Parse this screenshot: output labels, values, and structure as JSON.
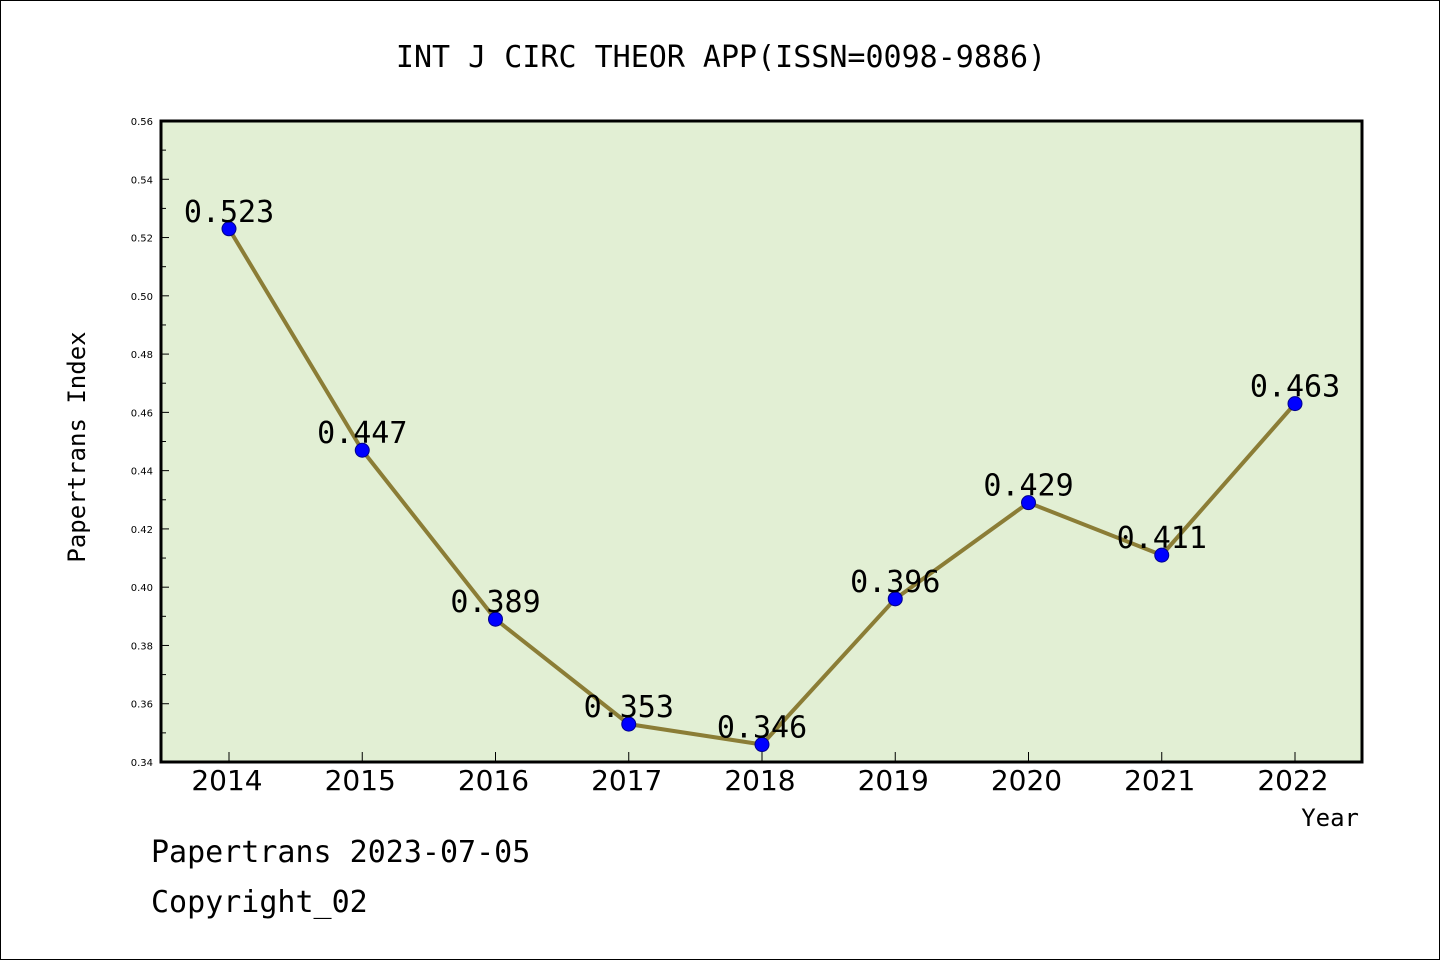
{
  "chart_data": {
    "type": "line",
    "title": "INT J CIRC THEOR APP(ISSN=0098-9886)",
    "xlabel": "Year",
    "ylabel": "Papertrans Index",
    "categories": [
      "2014",
      "2015",
      "2016",
      "2017",
      "2018",
      "2019",
      "2020",
      "2021",
      "2022"
    ],
    "series": [
      {
        "values": [
          0.523,
          0.447,
          0.389,
          0.353,
          0.346,
          0.396,
          0.429,
          0.411,
          0.463
        ],
        "labels": [
          "0.523",
          "0.447",
          "0.389",
          "0.353",
          "0.346",
          "0.396",
          "0.429",
          "0.411",
          "0.463"
        ]
      }
    ],
    "ylim": [
      0.34,
      0.56
    ],
    "yticks": [
      0.34,
      0.36,
      0.38,
      0.4,
      0.42,
      0.44,
      0.46,
      0.48,
      0.5,
      0.52,
      0.54,
      0.56
    ],
    "ytick_labels": [
      "0.34",
      "0.36",
      "0.38",
      "0.40",
      "0.42",
      "0.44",
      "0.46",
      "0.48",
      "0.50",
      "0.52",
      "0.54",
      "0.56"
    ],
    "grid": false,
    "legend": "none",
    "colors": {
      "plot_background": "#e2efd4",
      "line": "#8b7d36",
      "marker": "#0000ff"
    }
  },
  "footer": {
    "source": "Papertrans 2023-07-05",
    "copyright": "Copyright_02"
  }
}
